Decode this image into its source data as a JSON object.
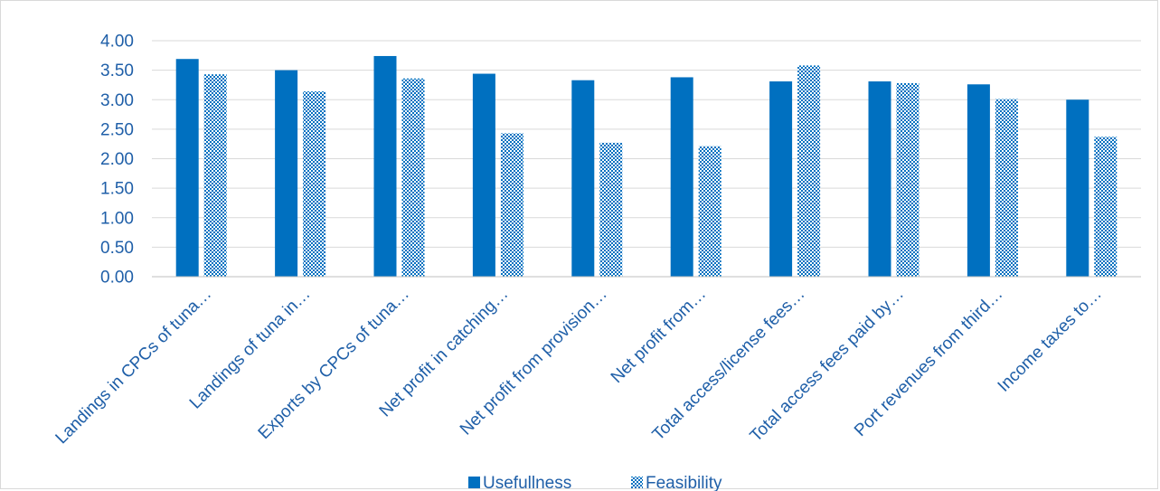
{
  "chart_data": {
    "type": "bar",
    "title": "",
    "xlabel": "",
    "ylabel": "",
    "ylim": [
      0,
      4
    ],
    "yticks": [
      "0.00",
      "0.50",
      "1.00",
      "1.50",
      "2.00",
      "2.50",
      "3.00",
      "3.50",
      "4.00"
    ],
    "grid": true,
    "legend_position": "bottom",
    "categories": [
      "Landings in CPCs of tuna…",
      "Landings of tuna in…",
      "Exports by CPCs of tuna…",
      "Net profit in catching…",
      "Net profit from provision…",
      "Net profit from…",
      "Total access/license fees…",
      "Total access fees paid by…",
      "Port revenues from third…",
      "Income taxes to…"
    ],
    "series": [
      {
        "name": "Usefullness",
        "color": "#0070c0",
        "pattern": "solid",
        "values": [
          3.69,
          3.5,
          3.74,
          3.44,
          3.33,
          3.38,
          3.31,
          3.31,
          3.26,
          3.0
        ]
      },
      {
        "name": "Feasibility",
        "color": "#0070c0",
        "pattern": "checker",
        "values": [
          3.43,
          3.14,
          3.36,
          2.43,
          2.27,
          2.21,
          3.58,
          3.28,
          3.01,
          2.37
        ]
      }
    ]
  }
}
